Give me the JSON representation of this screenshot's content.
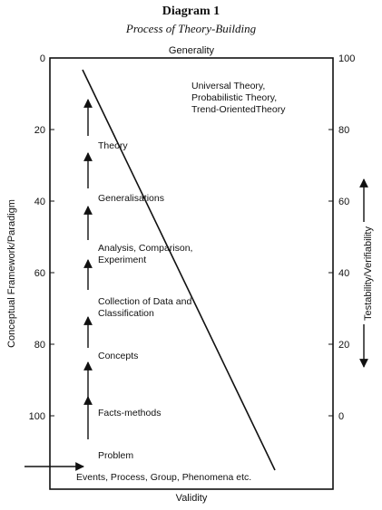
{
  "title": "Diagram 1",
  "subtitle": "Process of Theory-Building",
  "top_label": "Generality",
  "bottom_label": "Validity",
  "left_axis_label": "Conceptual Framework/Paradigm",
  "right_axis_label": "Testability/Verifiability",
  "left_ticks": [
    "0",
    "20",
    "40",
    "60",
    "80",
    "100"
  ],
  "right_ticks": [
    "100",
    "80",
    "60",
    "40",
    "20",
    "0"
  ],
  "stages": {
    "problem": "Problem",
    "facts_methods": "Facts-methods",
    "concepts": "Concepts",
    "collection_1": "Collection of Data and",
    "collection_2": "Classification",
    "analysis_1": "Analysis, Comparison,",
    "analysis_2": "Experiment",
    "generalisations": "Generalisations",
    "theory": "Theory"
  },
  "theory_types": {
    "line1": "Universal Theory,",
    "line2": "Probabilistic Theory,",
    "line3": "Trend-OrientedTheory"
  },
  "base_label": "Events, Process, Group, Phenomena etc."
}
